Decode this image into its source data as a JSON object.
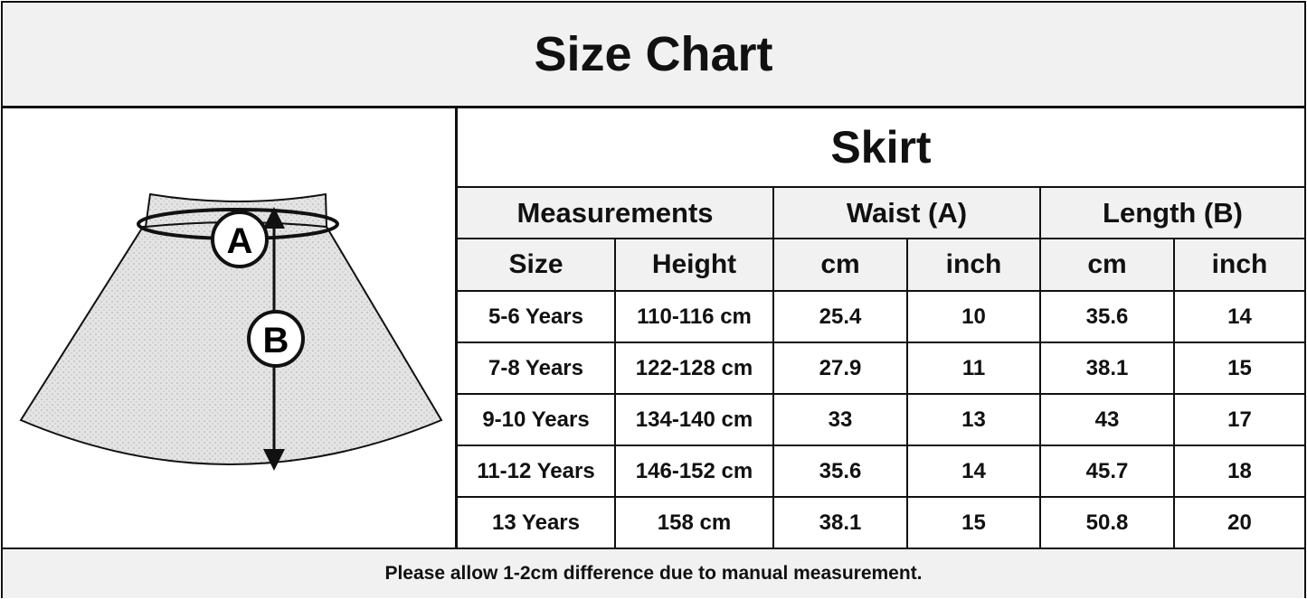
{
  "title": "Size Chart",
  "product": "Skirt",
  "diagram": {
    "waist_marker": "A",
    "length_marker": "B"
  },
  "table": {
    "group_headers": [
      "Measurements",
      "Waist (A)",
      "Length (B)"
    ],
    "sub_headers": [
      "Size",
      "Height",
      "cm",
      "inch",
      "cm",
      "inch"
    ],
    "rows": [
      [
        "5-6 Years",
        "110-116 cm",
        "25.4",
        "10",
        "35.6",
        "14"
      ],
      [
        "7-8 Years",
        "122-128 cm",
        "27.9",
        "11",
        "38.1",
        "15"
      ],
      [
        "9-10 Years",
        "134-140 cm",
        "33",
        "13",
        "43",
        "17"
      ],
      [
        "11-12 Years",
        "146-152 cm",
        "35.6",
        "14",
        "45.7",
        "18"
      ],
      [
        "13 Years",
        "158 cm",
        "38.1",
        "15",
        "50.8",
        "20"
      ]
    ]
  },
  "footer_note": "Please allow 1-2cm difference due to manual measurement.",
  "colors": {
    "header_bg": "#f1f1f1",
    "border": "#111111"
  }
}
